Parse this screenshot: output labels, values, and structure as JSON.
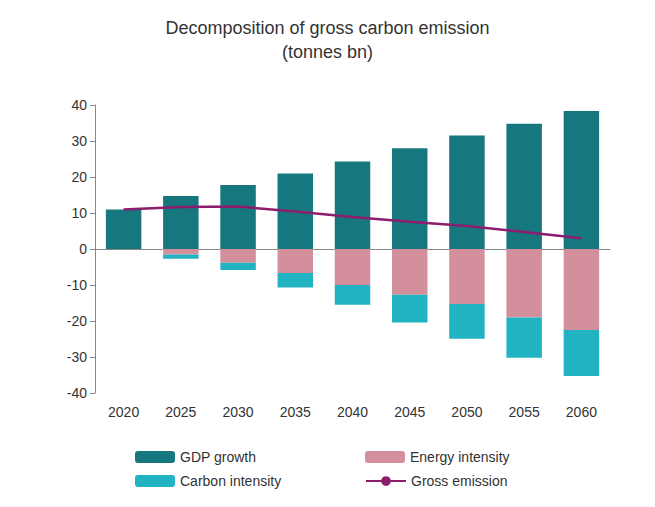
{
  "chart_data": {
    "type": "bar",
    "title": "Decomposition of gross carbon emission",
    "subtitle": "(tonnes bn)",
    "categories": [
      "2020",
      "2025",
      "2030",
      "2035",
      "2040",
      "2045",
      "2050",
      "2055",
      "2060"
    ],
    "series": [
      {
        "name": "GDP growth",
        "color": "#17777f",
        "values": [
          11,
          14.7,
          17.8,
          21,
          24.3,
          28,
          31.5,
          34.8,
          38.3
        ]
      },
      {
        "name": "Energy intensity",
        "color": "#d48f9c",
        "values": [
          0,
          -1.5,
          -3.8,
          -6.7,
          -10,
          -12.7,
          -15.3,
          -19,
          -22.5
        ]
      },
      {
        "name": "Carbon intensity",
        "color": "#22b3c3",
        "values": [
          0,
          -1.2,
          -2,
          -4,
          -5.5,
          -7.7,
          -9.6,
          -11.2,
          -12.8
        ]
      },
      {
        "name": "Gross emission",
        "color": "#8c1d6e",
        "type": "line",
        "line_style": "solid",
        "values": [
          11,
          11.7,
          11.8,
          10.4,
          8.9,
          7.6,
          6.4,
          4.7,
          3
        ]
      }
    ],
    "ylim": [
      -40,
      40
    ],
    "yticks": [
      -40,
      -30,
      -20,
      -10,
      0,
      10,
      20,
      30,
      40
    ],
    "grid": false,
    "stacked": true,
    "legend": "bottom"
  }
}
